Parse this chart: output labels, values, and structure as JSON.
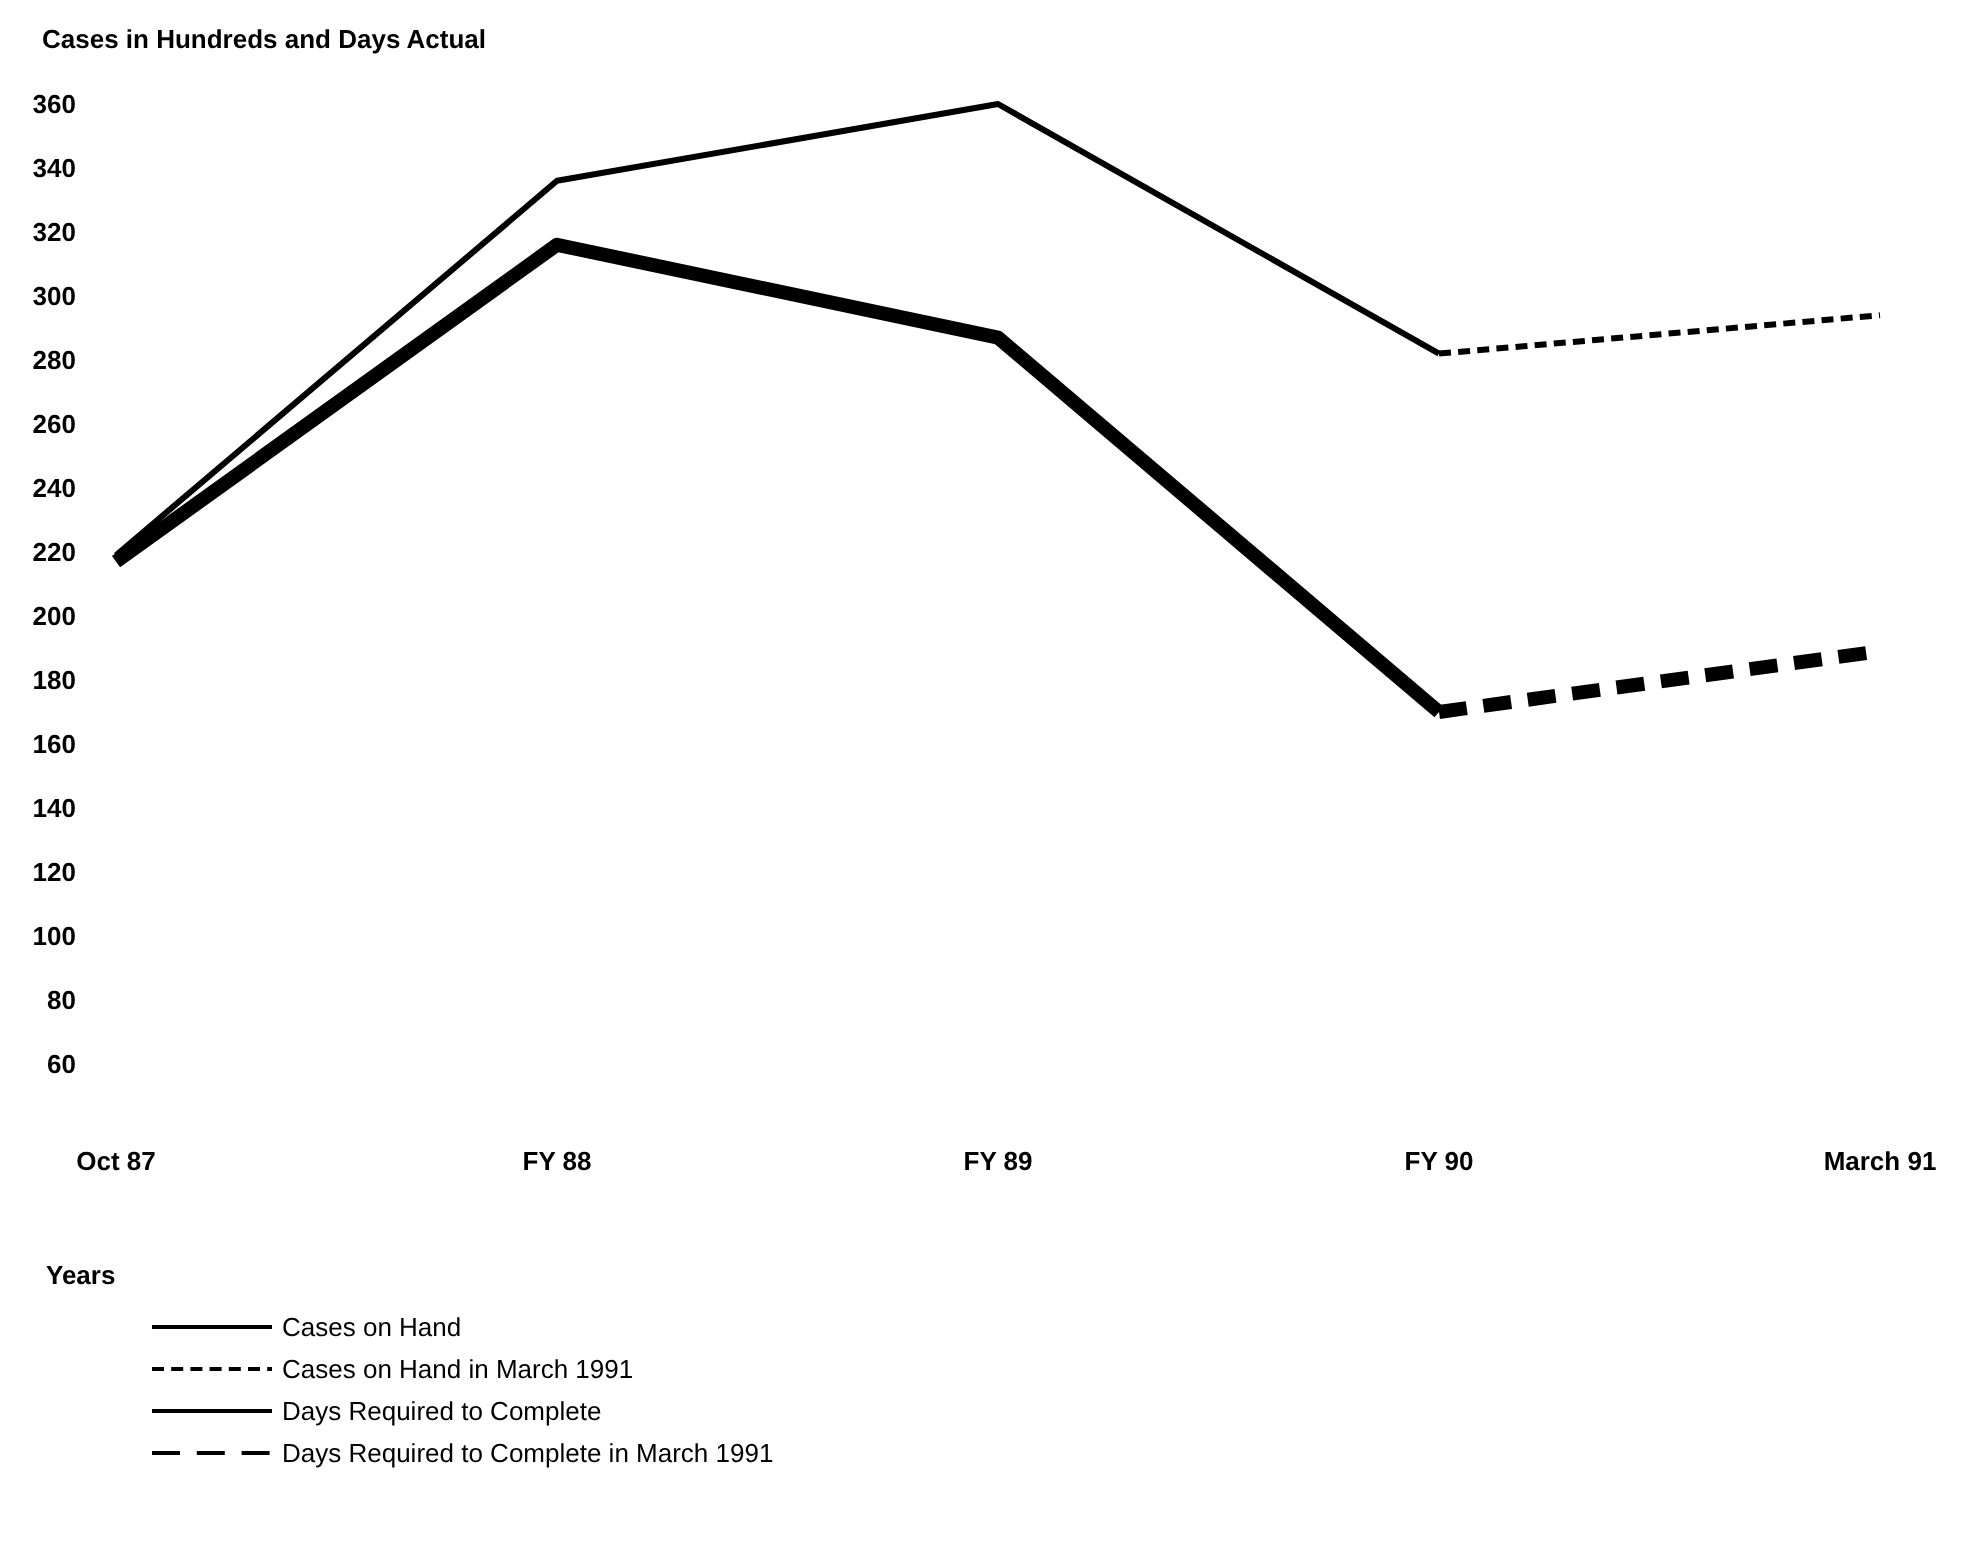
{
  "chart_data": {
    "type": "line",
    "ylabel": "Cases in Hundreds and Days Actual",
    "xlabel": "Years",
    "categories": [
      "Oct 87",
      "FY 88",
      "FY 89",
      "FY 90",
      "March 91"
    ],
    "series": [
      {
        "name": "Cases on Hand",
        "color": "#000000",
        "line_style": "solid",
        "values": [
          219,
          336,
          360,
          282,
          null
        ]
      },
      {
        "name": "Cases on Hand in March 1991",
        "color": "#000000",
        "line_style": "dashed",
        "values": [
          null,
          null,
          null,
          282,
          294
        ]
      },
      {
        "name": "Days Required to Complete",
        "color": "#000000",
        "line_style": "solid",
        "values": [
          217,
          316,
          287,
          170,
          null
        ]
      },
      {
        "name": "Days Required to Complete in March 1991",
        "color": "#000000",
        "line_style": "dashed",
        "values": [
          null,
          null,
          null,
          170,
          189
        ]
      }
    ],
    "ylim": [
      60,
      360
    ],
    "yticks": [
      60,
      80,
      100,
      120,
      140,
      160,
      180,
      200,
      220,
      240,
      260,
      280,
      300,
      320,
      340,
      360
    ],
    "grid": false,
    "legend": "bottom left",
    "marker": "none"
  }
}
